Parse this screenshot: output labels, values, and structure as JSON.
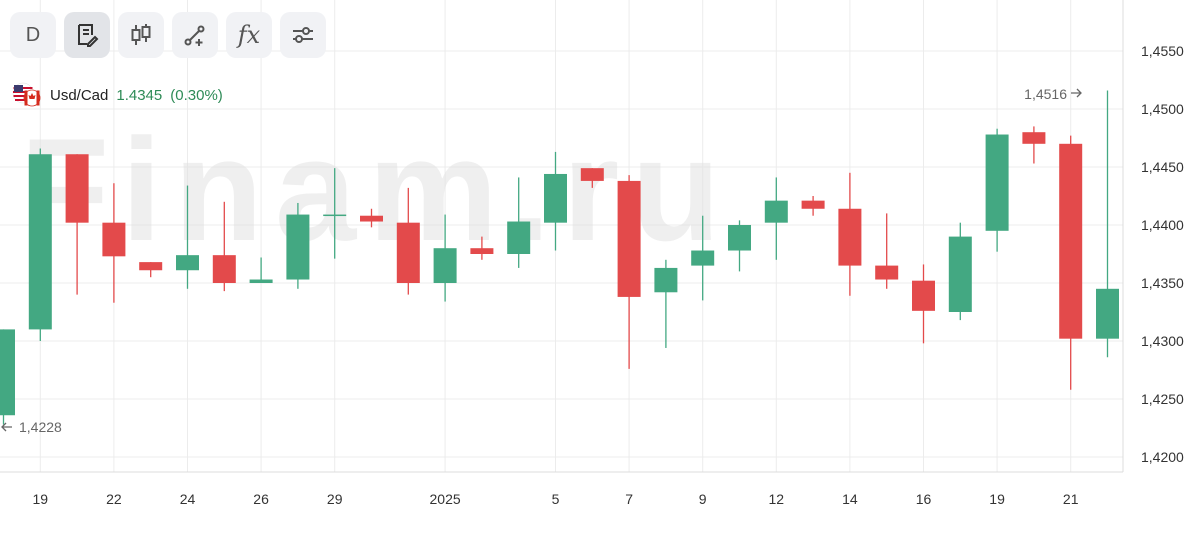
{
  "toolbar": {
    "timeframe_label": "D",
    "buttons": [
      {
        "name": "notes-icon"
      },
      {
        "name": "candles-icon"
      },
      {
        "name": "draw-icon"
      },
      {
        "name": "indicators-icon",
        "label": "fx"
      },
      {
        "name": "settings-sliders-icon"
      }
    ]
  },
  "legend": {
    "symbol": "Usd/Cad",
    "price": "1.4345",
    "change": "(0.30%)"
  },
  "watermark": "Finam.ru",
  "colors": {
    "up": "#43a882",
    "down": "#e34a4b",
    "grid": "#ececec"
  },
  "chart_data": {
    "type": "candlestick",
    "ylim": [
      1.4183,
      1.4583
    ],
    "y_ticks": [
      "1,4200",
      "1,4250",
      "1,4300",
      "1,4350",
      "1,4400",
      "1,4450",
      "1,4500",
      "1,4550"
    ],
    "x_tick_labels": [
      {
        "index": 1,
        "label": "19"
      },
      {
        "index": 3,
        "label": "22"
      },
      {
        "index": 5,
        "label": "24"
      },
      {
        "index": 7,
        "label": "26"
      },
      {
        "index": 9,
        "label": "29"
      },
      {
        "index": 12,
        "label": "2025"
      },
      {
        "index": 15,
        "label": "5"
      },
      {
        "index": 17,
        "label": "7"
      },
      {
        "index": 19,
        "label": "9"
      },
      {
        "index": 21,
        "label": "12"
      },
      {
        "index": 23,
        "label": "14"
      },
      {
        "index": 25,
        "label": "16"
      },
      {
        "index": 27,
        "label": "19"
      },
      {
        "index": 29,
        "label": "21"
      }
    ],
    "candles": [
      {
        "o": 1.4236,
        "h": 1.431,
        "l": 1.4228,
        "c": 1.431
      },
      {
        "o": 1.431,
        "h": 1.4466,
        "l": 1.43,
        "c": 1.4461
      },
      {
        "o": 1.4461,
        "h": 1.4461,
        "l": 1.434,
        "c": 1.4402
      },
      {
        "o": 1.4402,
        "h": 1.4436,
        "l": 1.4333,
        "c": 1.4373
      },
      {
        "o": 1.4368,
        "h": 1.4368,
        "l": 1.4355,
        "c": 1.4361
      },
      {
        "o": 1.4361,
        "h": 1.4434,
        "l": 1.4345,
        "c": 1.4374
      },
      {
        "o": 1.4374,
        "h": 1.442,
        "l": 1.4343,
        "c": 1.435
      },
      {
        "o": 1.435,
        "h": 1.4372,
        "l": 1.435,
        "c": 1.4353
      },
      {
        "o": 1.4353,
        "h": 1.4419,
        "l": 1.4345,
        "c": 1.4409
      },
      {
        "o": 1.4409,
        "h": 1.4449,
        "l": 1.4371,
        "c": 1.4409
      },
      {
        "o": 1.4408,
        "h": 1.4414,
        "l": 1.4398,
        "c": 1.4403
      },
      {
        "o": 1.4402,
        "h": 1.4432,
        "l": 1.434,
        "c": 1.435
      },
      {
        "o": 1.435,
        "h": 1.4409,
        "l": 1.4334,
        "c": 1.438
      },
      {
        "o": 1.438,
        "h": 1.439,
        "l": 1.437,
        "c": 1.4375
      },
      {
        "o": 1.4375,
        "h": 1.4441,
        "l": 1.4363,
        "c": 1.4403
      },
      {
        "o": 1.4402,
        "h": 1.4463,
        "l": 1.4378,
        "c": 1.4444
      },
      {
        "o": 1.4449,
        "h": 1.4449,
        "l": 1.4432,
        "c": 1.4438
      },
      {
        "o": 1.4438,
        "h": 1.4443,
        "l": 1.4276,
        "c": 1.4338
      },
      {
        "o": 1.4342,
        "h": 1.437,
        "l": 1.4294,
        "c": 1.4363
      },
      {
        "o": 1.4365,
        "h": 1.4408,
        "l": 1.4335,
        "c": 1.4378
      },
      {
        "o": 1.4378,
        "h": 1.4404,
        "l": 1.436,
        "c": 1.44
      },
      {
        "o": 1.4402,
        "h": 1.4441,
        "l": 1.437,
        "c": 1.4421
      },
      {
        "o": 1.4421,
        "h": 1.4425,
        "l": 1.4408,
        "c": 1.4414
      },
      {
        "o": 1.4414,
        "h": 1.4445,
        "l": 1.4339,
        "c": 1.4365
      },
      {
        "o": 1.4365,
        "h": 1.441,
        "l": 1.4345,
        "c": 1.4353
      },
      {
        "o": 1.4352,
        "h": 1.4366,
        "l": 1.4298,
        "c": 1.4326
      },
      {
        "o": 1.4325,
        "h": 1.4402,
        "l": 1.4318,
        "c": 1.439
      },
      {
        "o": 1.4395,
        "h": 1.4483,
        "l": 1.4377,
        "c": 1.4478
      },
      {
        "o": 1.448,
        "h": 1.4485,
        "l": 1.4453,
        "c": 1.447
      },
      {
        "o": 1.447,
        "h": 1.4477,
        "l": 1.4258,
        "c": 1.4302
      },
      {
        "o": 1.4302,
        "h": 1.4516,
        "l": 1.4286,
        "c": 1.4345
      }
    ],
    "max_label": "1,4516",
    "min_label": "1,4228"
  }
}
